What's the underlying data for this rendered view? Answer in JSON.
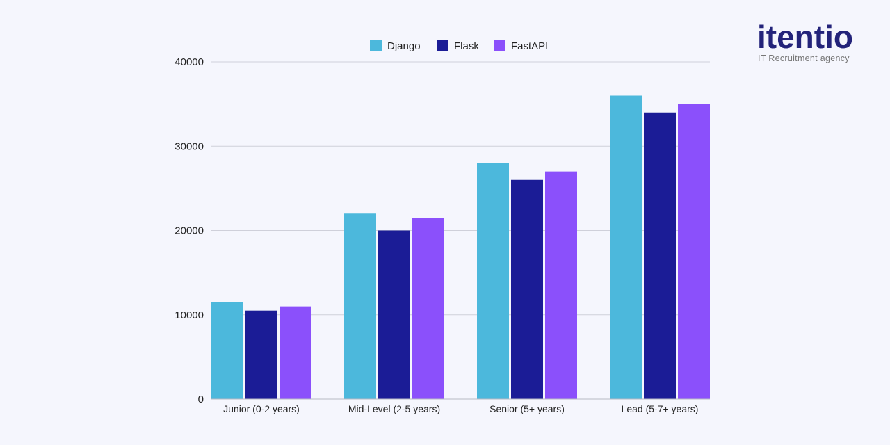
{
  "logo": {
    "name": "itentio",
    "tagline": "IT Recruitment agency"
  },
  "chart_data": {
    "type": "bar",
    "title": "",
    "xlabel": "",
    "ylabel": "",
    "categories": [
      "Junior (0-2 years)",
      "Mid-Level (2-5 years)",
      "Senior (5+ years)",
      "Lead (5-7+ years)"
    ],
    "series": [
      {
        "name": "Django",
        "color": "#4cb8dc",
        "values": [
          11500,
          22000,
          28000,
          36000
        ]
      },
      {
        "name": "Flask",
        "color": "#1b1c96",
        "values": [
          10500,
          20000,
          26000,
          34000
        ]
      },
      {
        "name": "FastAPI",
        "color": "#8b50fb",
        "values": [
          11000,
          21500,
          27000,
          35000
        ]
      }
    ],
    "ylim": [
      0,
      40000
    ],
    "yticks": [
      "0",
      "10000",
      "20000",
      "30000",
      "40000"
    ],
    "grid": true,
    "legend_position": "top"
  }
}
